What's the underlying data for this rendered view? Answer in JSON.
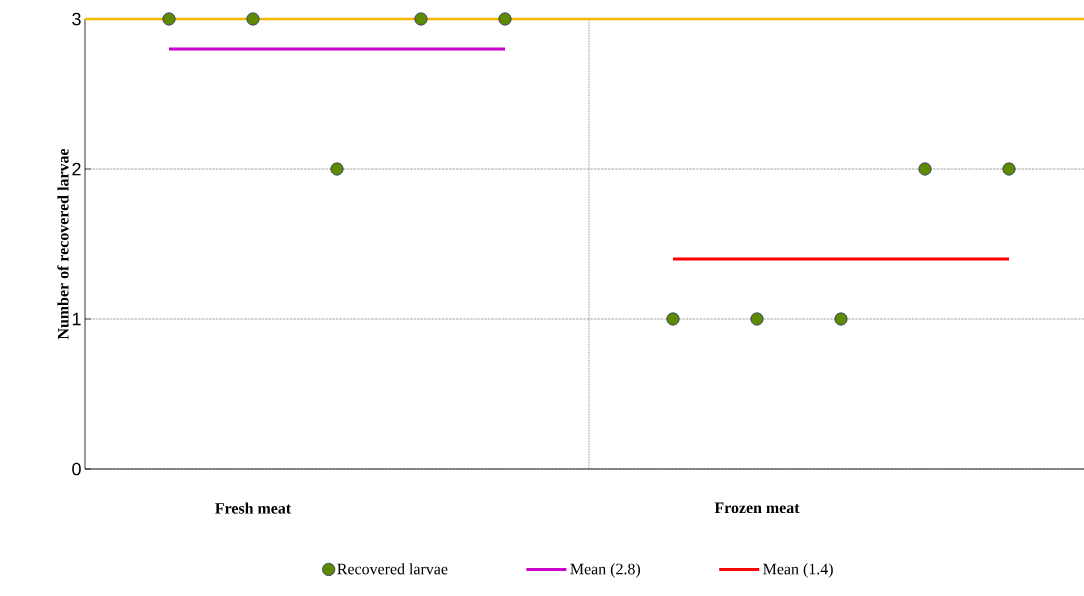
{
  "chart_data": {
    "type": "scatter",
    "ylabel": "Number of recovered larvae",
    "categories": [
      null,
      "Fresh meat",
      null,
      null,
      null,
      null,
      null,
      "Frozen meat",
      null,
      null,
      null
    ],
    "ylim": [
      0,
      3
    ],
    "yticks": [
      0,
      1,
      2,
      3
    ],
    "grid": "y",
    "legend": "bottom",
    "series": [
      {
        "name": "Recovered larvae",
        "marker": "circle",
        "color": "#5f8a00",
        "values": [
          3,
          3,
          2,
          3,
          3,
          null,
          1,
          1,
          1,
          2,
          2
        ]
      },
      {
        "name": "Mean (2.8)",
        "type": "line",
        "color": "#cc00cc",
        "values": [
          2.8,
          2.8,
          2.8,
          2.8,
          2.8,
          null,
          null,
          null,
          null,
          null,
          null
        ]
      },
      {
        "name": "Mean (1.4)",
        "type": "line",
        "color": "#ff0000",
        "values": [
          null,
          null,
          null,
          null,
          null,
          null,
          1.4,
          1.4,
          1.4,
          1.4,
          1.4
        ]
      }
    ],
    "ref_lines": [
      {
        "axis": "y",
        "value": 3,
        "color": "#f5b800"
      }
    ]
  }
}
